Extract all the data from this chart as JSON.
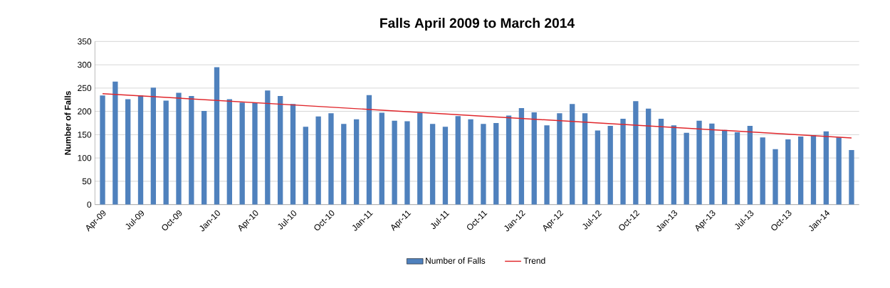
{
  "chart_data": {
    "type": "bar",
    "title": "Falls April 2009 to March 2014",
    "ylabel": "Number of Falls",
    "categories": [
      "Apr-09",
      null,
      null,
      "Jul-09",
      null,
      null,
      "Oct-09",
      null,
      null,
      "Jan-10",
      null,
      null,
      "Apr-10",
      null,
      null,
      "Jul-10",
      null,
      null,
      "Oct-10",
      null,
      null,
      "Jan-11",
      null,
      null,
      "Apr-11",
      null,
      null,
      "Jul-11",
      null,
      null,
      "Oct-11",
      null,
      null,
      "Jan-12",
      null,
      null,
      "Apr-12",
      null,
      null,
      "Jul-12",
      null,
      null,
      "Oct-12",
      null,
      null,
      "Jan-13",
      null,
      null,
      "Apr-13",
      null,
      null,
      "Jul-13",
      null,
      null,
      "Oct-13",
      null,
      null,
      "Jan-14",
      null,
      null
    ],
    "series": [
      {
        "name": "Number of Falls",
        "color": "#4f81bd",
        "values": [
          234,
          264,
          226,
          234,
          251,
          223,
          240,
          233,
          201,
          295,
          226,
          219,
          219,
          245,
          233,
          216,
          167,
          189,
          196,
          173,
          183,
          235,
          197,
          180,
          179,
          197,
          173,
          167,
          190,
          183,
          173,
          175,
          191,
          207,
          198,
          170,
          196,
          216,
          196,
          159,
          169,
          184,
          222,
          206,
          184,
          170,
          154,
          180,
          174,
          160,
          155,
          169,
          144,
          119,
          140,
          146,
          149,
          157,
          144,
          117
        ]
      },
      {
        "name": "Trend",
        "type": "line",
        "color": "#e0262b",
        "values": [
          238,
          null,
          null,
          null,
          null,
          null,
          null,
          null,
          null,
          null,
          null,
          null,
          null,
          null,
          null,
          null,
          null,
          null,
          null,
          null,
          null,
          null,
          null,
          null,
          null,
          null,
          null,
          null,
          null,
          null,
          null,
          null,
          null,
          null,
          null,
          null,
          null,
          null,
          null,
          null,
          null,
          null,
          null,
          null,
          null,
          null,
          null,
          null,
          null,
          null,
          null,
          null,
          null,
          null,
          null,
          null,
          null,
          null,
          null,
          143
        ]
      }
    ],
    "ylim": [
      0,
      350
    ],
    "yticks": [
      0,
      50,
      100,
      150,
      200,
      250,
      300,
      350
    ],
    "grid": "y",
    "legend": "bottom"
  }
}
